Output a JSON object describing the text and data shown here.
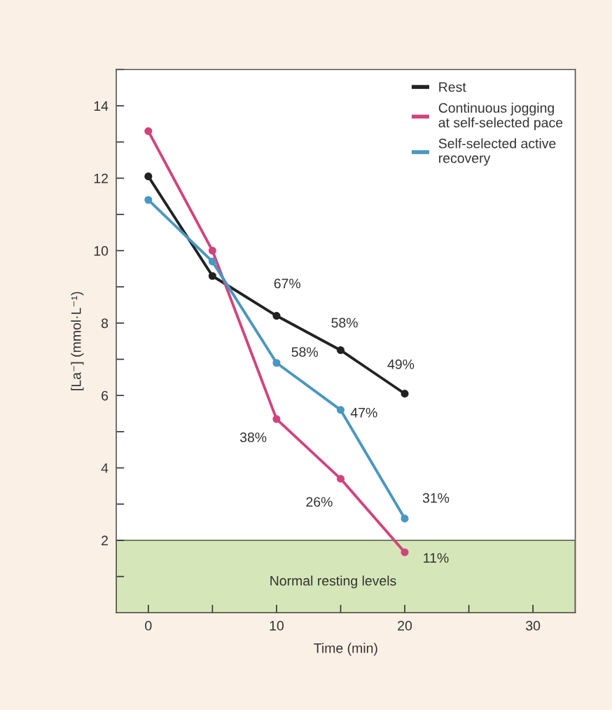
{
  "chart_data": {
    "type": "line",
    "xlabel": "Time (min)",
    "ylabel": "[La⁻] (mmol·L⁻¹)",
    "x": [
      0,
      5,
      10,
      15,
      20
    ],
    "series": [
      {
        "name": "Rest",
        "color": "#222222",
        "values": [
          12.05,
          9.3,
          8.2,
          7.25,
          6.05
        ]
      },
      {
        "name": "Continuous jogging\nat self-selected pace",
        "color": "#d0447c",
        "values": [
          13.3,
          10.0,
          5.35,
          3.7,
          1.67
        ]
      },
      {
        "name": "Self-selected active\nrecovery",
        "color": "#4a97c0",
        "values": [
          11.4,
          9.7,
          6.9,
          5.6,
          2.6
        ]
      }
    ],
    "xlim": [
      -2.5,
      33.3
    ],
    "ylim": [
      0,
      15
    ],
    "xticks": [
      0,
      {
        "value": 5,
        "label": null
      },
      10,
      {
        "value": 15,
        "label": null
      },
      20,
      {
        "value": 25,
        "label": null
      },
      30
    ],
    "yticks": [
      {
        "value": 1,
        "label": null
      },
      2,
      {
        "value": 3,
        "label": null
      },
      4,
      {
        "value": 5,
        "label": null
      },
      6,
      {
        "value": 7,
        "label": null
      },
      8,
      {
        "value": 9,
        "label": null
      },
      10,
      {
        "value": 11,
        "label": null
      },
      12,
      {
        "value": 13,
        "label": null
      },
      14,
      {
        "value": 15,
        "label": null
      }
    ],
    "bands": [
      {
        "axis": "y",
        "from": 0,
        "to": 2,
        "label": "Normal resting levels",
        "color": "#d5e7b8"
      }
    ],
    "annotations": [
      {
        "text": "67%",
        "x": 10,
        "y": 8.2
      },
      {
        "text": "58%",
        "x": 15,
        "y": 7.25
      },
      {
        "text": "49%",
        "x": 20,
        "y": 6.05
      },
      {
        "text": "58%",
        "x": 10,
        "y": 6.9
      },
      {
        "text": "47%",
        "x": 15,
        "y": 5.6
      },
      {
        "text": "38%",
        "x": 10,
        "y": 5.35
      },
      {
        "text": "26%",
        "x": 15,
        "y": 3.7
      },
      {
        "text": "31%",
        "x": 20,
        "y": 2.6
      },
      {
        "text": "11%",
        "x": 20,
        "y": 1.67
      }
    ],
    "marker": "circle",
    "line_style": "solid",
    "legend": "top right",
    "grid": false
  }
}
